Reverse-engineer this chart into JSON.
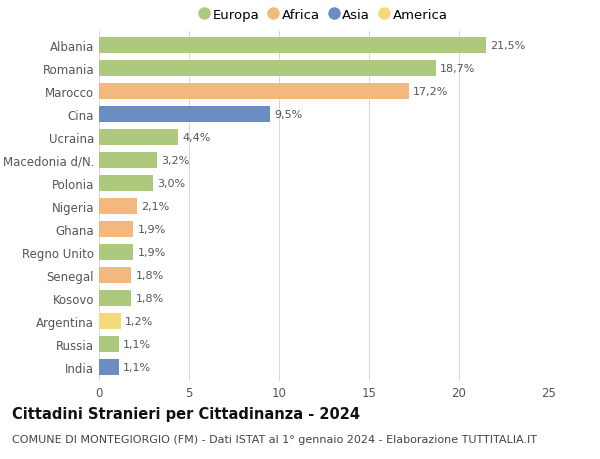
{
  "countries": [
    "Albania",
    "Romania",
    "Marocco",
    "Cina",
    "Ucraina",
    "Macedonia d/N.",
    "Polonia",
    "Nigeria",
    "Ghana",
    "Regno Unito",
    "Senegal",
    "Kosovo",
    "Argentina",
    "Russia",
    "India"
  ],
  "values": [
    21.5,
    18.7,
    17.2,
    9.5,
    4.4,
    3.2,
    3.0,
    2.1,
    1.9,
    1.9,
    1.8,
    1.8,
    1.2,
    1.1,
    1.1
  ],
  "labels": [
    "21,5%",
    "18,7%",
    "17,2%",
    "9,5%",
    "4,4%",
    "3,2%",
    "3,0%",
    "2,1%",
    "1,9%",
    "1,9%",
    "1,8%",
    "1,8%",
    "1,2%",
    "1,1%",
    "1,1%"
  ],
  "continents": [
    "Europa",
    "Europa",
    "Africa",
    "Asia",
    "Europa",
    "Europa",
    "Europa",
    "Africa",
    "Africa",
    "Europa",
    "Africa",
    "Europa",
    "America",
    "Europa",
    "Asia"
  ],
  "continent_colors": {
    "Europa": "#adc97e",
    "Africa": "#f2b87e",
    "Asia": "#6b8dc4",
    "America": "#f5d97a"
  },
  "legend_order": [
    "Europa",
    "Africa",
    "Asia",
    "America"
  ],
  "title": "Cittadini Stranieri per Cittadinanza - 2024",
  "subtitle": "COMUNE DI MONTEGIORGIO (FM) - Dati ISTAT al 1° gennaio 2024 - Elaborazione TUTTITALIA.IT",
  "xlim": [
    0,
    25
  ],
  "xticks": [
    0,
    5,
    10,
    15,
    20,
    25
  ],
  "background_color": "#ffffff",
  "grid_color": "#d8d8d8",
  "bar_height": 0.72,
  "title_fontsize": 10.5,
  "subtitle_fontsize": 8,
  "label_fontsize": 8,
  "tick_fontsize": 8.5,
  "legend_fontsize": 9.5
}
